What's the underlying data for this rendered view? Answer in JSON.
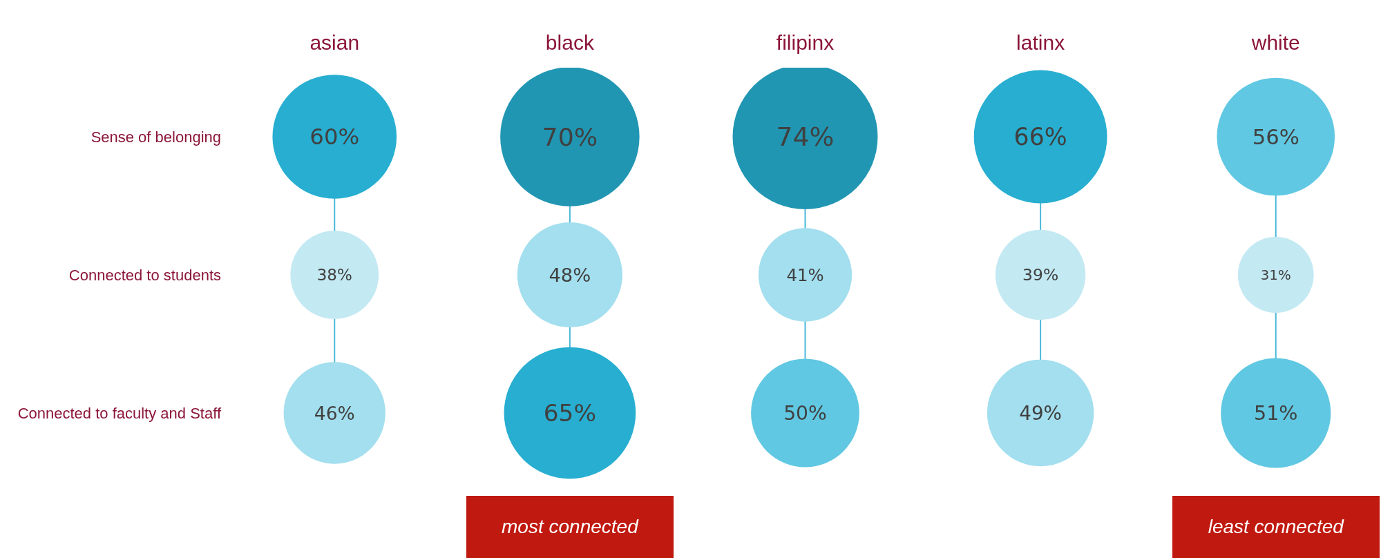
{
  "chart_data": {
    "type": "other",
    "categories": [
      "asian",
      "black",
      "filipinx",
      "latinx",
      "white"
    ],
    "y_categories": [
      "Sense of belonging",
      "Connected to students",
      "Connected to faculty and Staff"
    ],
    "series": [
      {
        "values": [
          60,
          70,
          74,
          66,
          56
        ],
        "value_labels": [
          "60%",
          "70%",
          "74%",
          "66%",
          "56%"
        ],
        "colors": [
          "#27aed1",
          "#2196b3",
          "#2196b3",
          "#27aed1",
          "#60c8e2"
        ]
      },
      {
        "values": [
          38,
          48,
          41,
          39,
          31
        ],
        "value_labels": [
          "38%",
          "48%",
          "41%",
          "39%",
          "31%"
        ],
        "colors": [
          "#c3e9f3",
          "#a3dfee",
          "#a3dfee",
          "#c3e9f3",
          "#c3e9f3"
        ]
      },
      {
        "values": [
          46,
          65,
          50,
          49,
          51
        ],
        "value_labels": [
          "46%",
          "65%",
          "50%",
          "49%",
          "51%"
        ],
        "colors": [
          "#a3dfee",
          "#27aed1",
          "#60c8e2",
          "#a3dfee",
          "#60c8e2"
        ]
      }
    ],
    "annotations": [
      "most connected",
      "least connected"
    ]
  }
}
